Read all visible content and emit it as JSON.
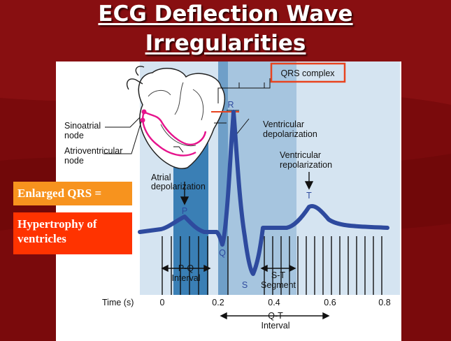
{
  "slide": {
    "title_line1": "ECG Deflection Wave",
    "title_line2": "Irregularities"
  },
  "callouts": {
    "enlarged_qrs": "Enlarged QRS =",
    "hypertrophy": "Hypertrophy of ventricles"
  },
  "figure": {
    "qrs_complex": "QRS complex",
    "sinoatrial_line1": "Sinoatrial",
    "sinoatrial_line2": "node",
    "atrioventricular_line1": "Atrioventricular",
    "atrioventricular_line2": "node",
    "atrial_line1": "Atrial",
    "atrial_line2": "depolarization",
    "ventricular_dep_line1": "Ventricular",
    "ventricular_dep_line2": "depolarization",
    "ventricular_rep_line1": "Ventricular",
    "ventricular_rep_line2": "repolarization",
    "wave_p": "P",
    "wave_q": "Q",
    "wave_r": "R",
    "wave_s": "S",
    "wave_t": "T",
    "pq_line1": "P-Q",
    "pq_line2": "Interval",
    "st_line1": "S-T",
    "st_line2": "Segment",
    "qt_line1": "Q-T",
    "qt_line2": "Interval",
    "time_label": "Time (s)",
    "time_ticks": [
      "0",
      "0.2",
      "0.4",
      "0.6",
      "0.8"
    ]
  },
  "colors": {
    "background": "#7a0a0c",
    "ecg_trace": "#2e4a9e",
    "panel_light": "#c9dcec",
    "pr_band": "#3a7fb5",
    "qrs_band": "#9fc0dc",
    "conduction_path": "#e6138c",
    "qrs_box": "#e8431f"
  }
}
